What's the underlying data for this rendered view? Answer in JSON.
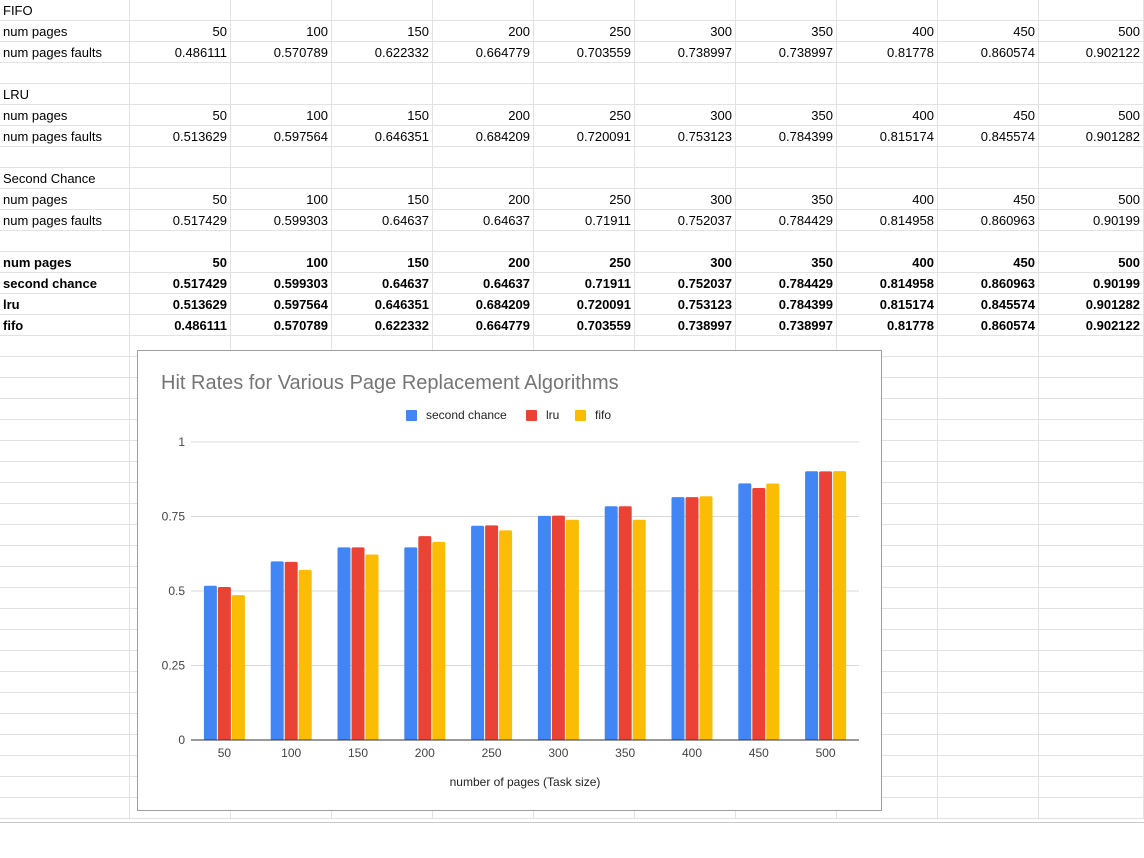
{
  "sheet": {
    "sections": [
      {
        "title": "FIFO",
        "rows": [
          {
            "label": "num pages",
            "values": [
              "50",
              "100",
              "150",
              "200",
              "250",
              "300",
              "350",
              "400",
              "450",
              "500"
            ]
          },
          {
            "label": "num pages faults",
            "values": [
              "0.486111",
              "0.570789",
              "0.622332",
              "0.664779",
              "0.703559",
              "0.738997",
              "0.738997",
              "0.81778",
              "0.860574",
              "0.902122"
            ]
          }
        ]
      },
      {
        "title": "LRU",
        "rows": [
          {
            "label": "num pages",
            "values": [
              "50",
              "100",
              "150",
              "200",
              "250",
              "300",
              "350",
              "400",
              "450",
              "500"
            ]
          },
          {
            "label": "num pages faults",
            "values": [
              "0.513629",
              "0.597564",
              "0.646351",
              "0.684209",
              "0.720091",
              "0.753123",
              "0.784399",
              "0.815174",
              "0.845574",
              "0.901282"
            ]
          }
        ]
      },
      {
        "title": "Second Chance",
        "rows": [
          {
            "label": "num pages",
            "values": [
              "50",
              "100",
              "150",
              "200",
              "250",
              "300",
              "350",
              "400",
              "450",
              "500"
            ]
          },
          {
            "label": "num pages faults",
            "values": [
              "0.517429",
              "0.599303",
              "0.64637",
              "0.64637",
              "0.71911",
              "0.752037",
              "0.784429",
              "0.814958",
              "0.860963",
              "0.90199"
            ]
          }
        ]
      }
    ],
    "summary": [
      {
        "label": "num pages",
        "values": [
          "50",
          "100",
          "150",
          "200",
          "250",
          "300",
          "350",
          "400",
          "450",
          "500"
        ]
      },
      {
        "label": "second chance",
        "values": [
          "0.517429",
          "0.599303",
          "0.64637",
          "0.64637",
          "0.71911",
          "0.752037",
          "0.784429",
          "0.814958",
          "0.860963",
          "0.90199"
        ]
      },
      {
        "label": "lru",
        "values": [
          "0.513629",
          "0.597564",
          "0.646351",
          "0.684209",
          "0.720091",
          "0.753123",
          "0.784399",
          "0.815174",
          "0.845574",
          "0.901282"
        ]
      },
      {
        "label": "fifo",
        "values": [
          "0.486111",
          "0.570789",
          "0.622332",
          "0.664779",
          "0.703559",
          "0.738997",
          "0.738997",
          "0.81778",
          "0.860574",
          "0.902122"
        ]
      }
    ]
  },
  "chart_data": {
    "type": "bar",
    "title": "Hit Rates for Various Page Replacement Algorithms",
    "xlabel": "number of pages (Task size)",
    "ylabel": "",
    "categories": [
      "50",
      "100",
      "150",
      "200",
      "250",
      "300",
      "350",
      "400",
      "450",
      "500"
    ],
    "series": [
      {
        "name": "second chance",
        "color": "#4285f4",
        "values": [
          0.517429,
          0.599303,
          0.64637,
          0.64637,
          0.71911,
          0.752037,
          0.784429,
          0.814958,
          0.860963,
          0.90199
        ]
      },
      {
        "name": "lru",
        "color": "#ea4335",
        "values": [
          0.513629,
          0.597564,
          0.646351,
          0.684209,
          0.720091,
          0.753123,
          0.784399,
          0.815174,
          0.845574,
          0.901282
        ]
      },
      {
        "name": "fifo",
        "color": "#fbbc04",
        "values": [
          0.486111,
          0.570789,
          0.622332,
          0.664779,
          0.703559,
          0.738997,
          0.738997,
          0.81778,
          0.860574,
          0.902122
        ]
      }
    ],
    "ylim": [
      0,
      1
    ],
    "yticks": [
      0,
      0.25,
      0.5,
      0.75,
      1
    ],
    "ytick_labels": [
      "0",
      "0.25",
      "0.5",
      "0.75",
      "1"
    ],
    "legend_position": "top-center",
    "grid": true
  }
}
